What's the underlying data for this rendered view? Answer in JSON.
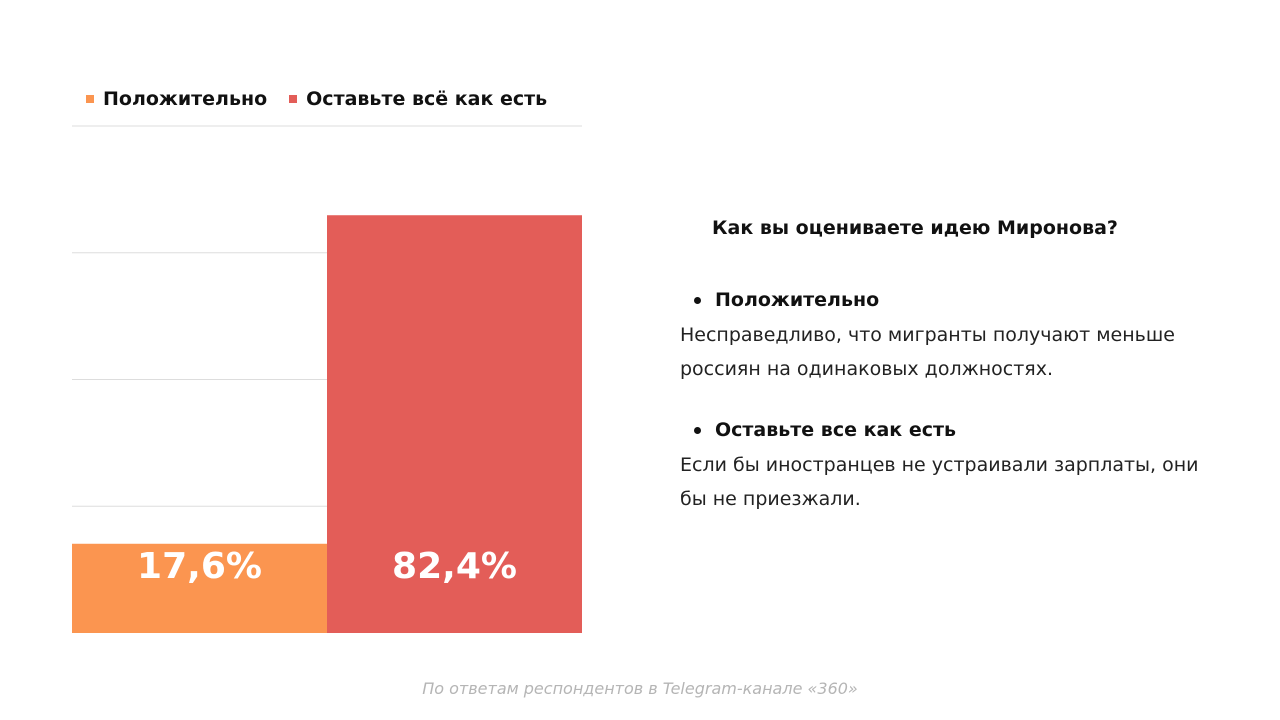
{
  "chart_data": {
    "type": "bar",
    "categories": [
      "Положительно",
      "Оставьте всё как есть"
    ],
    "values": [
      17.6,
      82.4
    ],
    "value_labels": [
      "17,6%",
      "82,4%"
    ],
    "ylim": [
      0,
      100
    ],
    "grid": true,
    "legend_position": "top-left",
    "colors": [
      "#fb9550",
      "#e35d58"
    ]
  },
  "legend": [
    {
      "label": "Положительно",
      "color": "#fb9550"
    },
    {
      "label": "Оставьте всё как есть",
      "color": "#e35d58"
    }
  ],
  "panel": {
    "title": "Как вы оцениваете идею Миронова?",
    "items": [
      {
        "heading": "Положительно",
        "text": "Несправедливо, что мигранты получают меньше россиян на одинаковых должностях."
      },
      {
        "heading": "Оставьте все как есть",
        "text": "Если бы иностранцев не устраивали зарплаты, они бы не приезжали."
      }
    ]
  },
  "footnote": "По ответам респондентов в Telegram-канале «360»"
}
